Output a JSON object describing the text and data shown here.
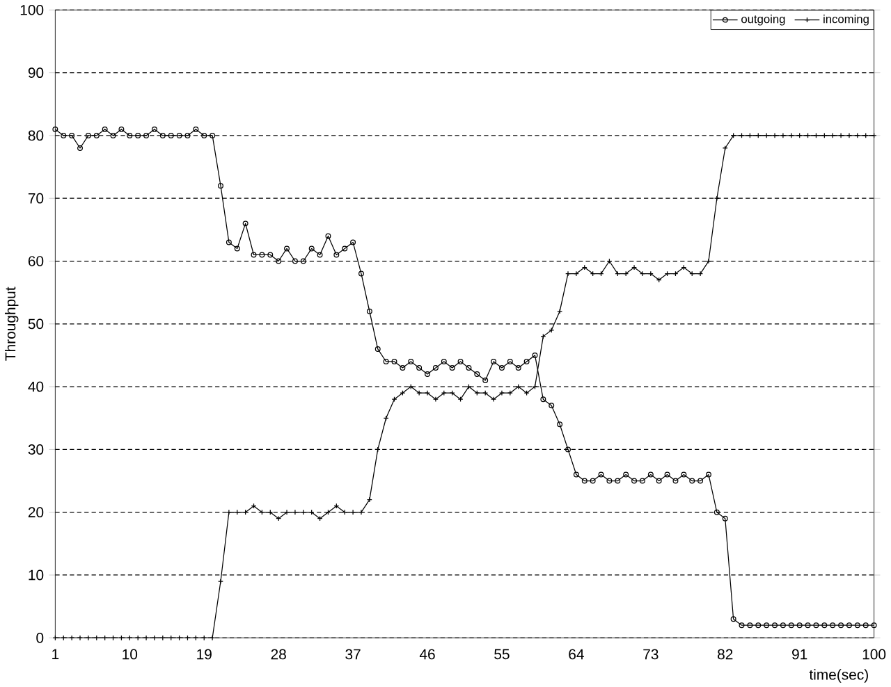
{
  "chart_data": {
    "type": "line",
    "xlabel": "time(sec)",
    "ylabel": "Throughput",
    "xlim": [
      1,
      100
    ],
    "xticks": [
      1,
      10,
      19,
      28,
      37,
      46,
      55,
      64,
      73,
      82,
      91,
      100
    ],
    "ylim": [
      0,
      100
    ],
    "yticks": [
      0,
      10,
      20,
      30,
      40,
      50,
      60,
      70,
      80,
      90,
      100
    ],
    "grid": "y",
    "legend": "top right",
    "line_style": "solid",
    "x": [
      1,
      2,
      3,
      4,
      5,
      6,
      7,
      8,
      9,
      10,
      11,
      12,
      13,
      14,
      15,
      16,
      17,
      18,
      19,
      20,
      21,
      22,
      23,
      24,
      25,
      26,
      27,
      28,
      29,
      30,
      31,
      32,
      33,
      34,
      35,
      36,
      37,
      38,
      39,
      40,
      41,
      42,
      43,
      44,
      45,
      46,
      47,
      48,
      49,
      50,
      51,
      52,
      53,
      54,
      55,
      56,
      57,
      58,
      59,
      60,
      61,
      62,
      63,
      64,
      65,
      66,
      67,
      68,
      69,
      70,
      71,
      72,
      73,
      74,
      75,
      76,
      77,
      78,
      79,
      80,
      81,
      82,
      83,
      84,
      85,
      86,
      87,
      88,
      89,
      90,
      91,
      92,
      93,
      94,
      95,
      96,
      97,
      98,
      99,
      100
    ],
    "series": [
      {
        "name": "outgoing",
        "color": "#000000",
        "marker": "circle",
        "values": [
          81,
          80,
          80,
          78,
          80,
          80,
          81,
          80,
          81,
          80,
          80,
          80,
          81,
          80,
          80,
          80,
          80,
          81,
          80,
          80,
          72,
          63,
          62,
          66,
          61,
          61,
          61,
          60,
          62,
          60,
          60,
          62,
          61,
          64,
          61,
          62,
          63,
          58,
          52,
          46,
          44,
          44,
          43,
          44,
          43,
          42,
          43,
          44,
          43,
          44,
          43,
          42,
          41,
          44,
          43,
          44,
          43,
          44,
          45,
          38,
          37,
          34,
          30,
          26,
          25,
          25,
          26,
          25,
          25,
          26,
          25,
          25,
          26,
          25,
          26,
          25,
          26,
          25,
          25,
          26,
          20,
          19,
          3,
          2,
          2,
          2,
          2,
          2,
          2,
          2,
          2,
          2,
          2,
          2,
          2,
          2,
          2,
          2,
          2,
          2
        ]
      },
      {
        "name": "incoming",
        "color": "#000000",
        "marker": "cross",
        "values": [
          0,
          0,
          0,
          0,
          0,
          0,
          0,
          0,
          0,
          0,
          0,
          0,
          0,
          0,
          0,
          0,
          0,
          0,
          0,
          0,
          9,
          20,
          20,
          20,
          21,
          20,
          20,
          19,
          20,
          20,
          20,
          20,
          19,
          20,
          21,
          20,
          20,
          20,
          22,
          30,
          35,
          38,
          39,
          40,
          39,
          39,
          38,
          39,
          39,
          38,
          40,
          39,
          39,
          38,
          39,
          39,
          40,
          39,
          40,
          48,
          49,
          52,
          58,
          58,
          59,
          58,
          58,
          60,
          58,
          58,
          59,
          58,
          58,
          57,
          58,
          58,
          59,
          58,
          58,
          60,
          70,
          78,
          80,
          80,
          80,
          80,
          80,
          80,
          80,
          80,
          80,
          80,
          80,
          80,
          80,
          80,
          80,
          80,
          80,
          80
        ]
      }
    ]
  }
}
